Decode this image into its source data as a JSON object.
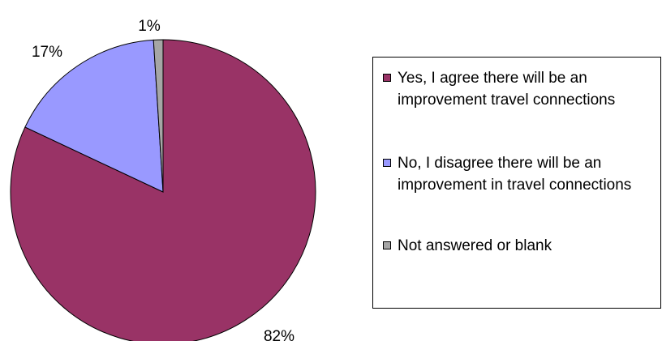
{
  "chart_data": {
    "type": "pie",
    "categories": [
      "Yes, I agree there will be an improvement travel connections",
      "No, I disagree there will be an improvement in travel connections",
      "Not answered or blank"
    ],
    "values": [
      82,
      17,
      1
    ],
    "data_labels": [
      "82%",
      "17%",
      "1%"
    ],
    "colors": [
      "#993366",
      "#9999FF",
      "#A6A6A6"
    ],
    "legend_position": "right"
  }
}
